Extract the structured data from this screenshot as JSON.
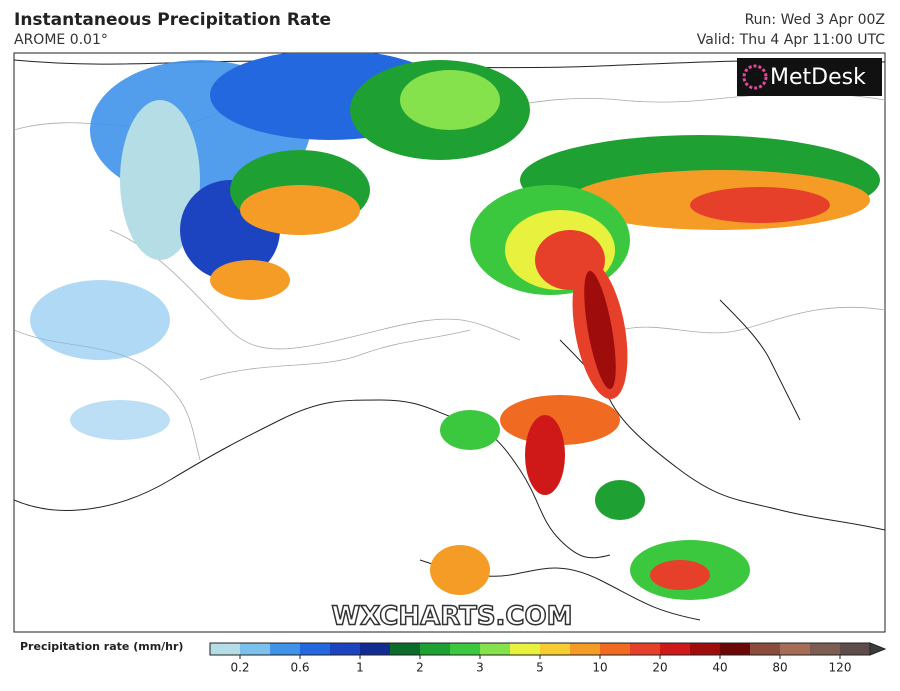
{
  "header": {
    "title": "Instantaneous Precipitation Rate",
    "subtitle": "AROME 0.01°",
    "run": "Run: Wed 3 Apr 00Z",
    "valid": "Valid: Thu 4 Apr 11:00 UTC"
  },
  "logo": "MetDesk",
  "watermark": "WXCHARTS.COM",
  "colorbar": {
    "label": "Precipitation rate (mm/hr)",
    "ticks": [
      "0.2",
      "0.6",
      "1",
      "2",
      "3",
      "5",
      "10",
      "20",
      "40",
      "80",
      "120"
    ],
    "colors": [
      "#b5dde6",
      "#7cc0ee",
      "#3f94ea",
      "#2468e0",
      "#1c44c0",
      "#132c92",
      "#0b6b2b",
      "#1fa033",
      "#3cc83e",
      "#86e24c",
      "#e8f23e",
      "#f6cd32",
      "#f59c26",
      "#f06a22",
      "#e6402b",
      "#cf1818",
      "#9e0c0c",
      "#6b0707",
      "#8b4c3c",
      "#a56d58",
      "#7c5d52",
      "#5d4c49",
      "#3c3c3c"
    ]
  }
}
